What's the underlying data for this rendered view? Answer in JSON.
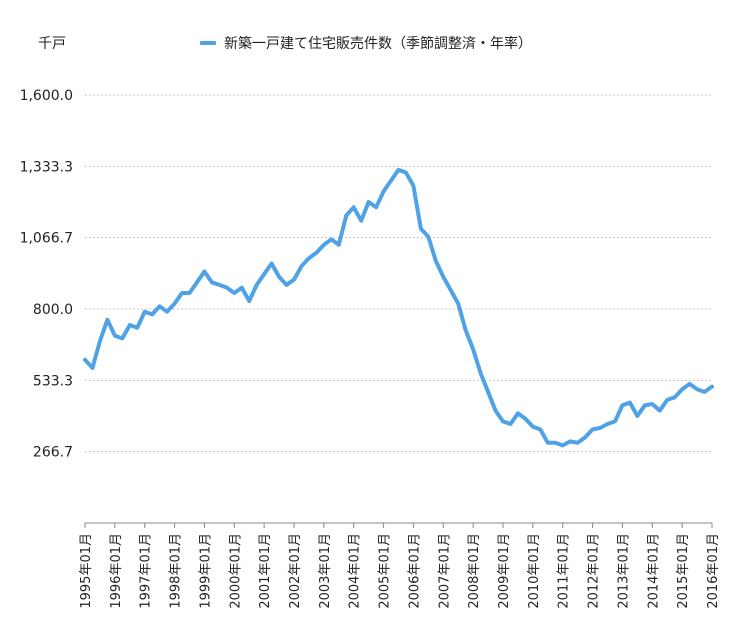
{
  "chart_data": {
    "type": "line",
    "unit_label": "千戸",
    "series": [
      {
        "name": "新築一戸建て住宅販売件数（季節調整済・年率）",
        "color": "#4fa2e6",
        "points": [
          [
            "1995-01",
            610
          ],
          [
            "1995-04",
            580
          ],
          [
            "1995-07",
            680
          ],
          [
            "1995-10",
            760
          ],
          [
            "1996-01",
            700
          ],
          [
            "1996-04",
            690
          ],
          [
            "1996-07",
            740
          ],
          [
            "1996-10",
            730
          ],
          [
            "1997-01",
            790
          ],
          [
            "1997-04",
            780
          ],
          [
            "1997-07",
            810
          ],
          [
            "1997-10",
            790
          ],
          [
            "1998-01",
            820
          ],
          [
            "1998-04",
            860
          ],
          [
            "1998-07",
            860
          ],
          [
            "1998-10",
            900
          ],
          [
            "1999-01",
            940
          ],
          [
            "1999-04",
            900
          ],
          [
            "1999-07",
            890
          ],
          [
            "1999-10",
            880
          ],
          [
            "2000-01",
            860
          ],
          [
            "2000-04",
            880
          ],
          [
            "2000-07",
            830
          ],
          [
            "2000-10",
            890
          ],
          [
            "2001-01",
            930
          ],
          [
            "2001-04",
            970
          ],
          [
            "2001-07",
            920
          ],
          [
            "2001-10",
            890
          ],
          [
            "2002-01",
            910
          ],
          [
            "2002-04",
            960
          ],
          [
            "2002-07",
            990
          ],
          [
            "2002-10",
            1010
          ],
          [
            "2003-01",
            1040
          ],
          [
            "2003-04",
            1060
          ],
          [
            "2003-07",
            1040
          ],
          [
            "2003-10",
            1150
          ],
          [
            "2004-01",
            1180
          ],
          [
            "2004-04",
            1130
          ],
          [
            "2004-07",
            1200
          ],
          [
            "2004-10",
            1180
          ],
          [
            "2005-01",
            1240
          ],
          [
            "2005-04",
            1280
          ],
          [
            "2005-07",
            1320
          ],
          [
            "2005-10",
            1310
          ],
          [
            "2006-01",
            1260
          ],
          [
            "2006-04",
            1100
          ],
          [
            "2006-07",
            1070
          ],
          [
            "2006-10",
            980
          ],
          [
            "2007-01",
            920
          ],
          [
            "2007-04",
            870
          ],
          [
            "2007-07",
            820
          ],
          [
            "2007-10",
            720
          ],
          [
            "2008-01",
            650
          ],
          [
            "2008-04",
            560
          ],
          [
            "2008-07",
            490
          ],
          [
            "2008-10",
            420
          ],
          [
            "2009-01",
            380
          ],
          [
            "2009-04",
            370
          ],
          [
            "2009-07",
            410
          ],
          [
            "2009-10",
            390
          ],
          [
            "2010-01",
            360
          ],
          [
            "2010-04",
            350
          ],
          [
            "2010-07",
            300
          ],
          [
            "2010-10",
            300
          ],
          [
            "2011-01",
            290
          ],
          [
            "2011-04",
            305
          ],
          [
            "2011-07",
            300
          ],
          [
            "2011-10",
            320
          ],
          [
            "2012-01",
            350
          ],
          [
            "2012-04",
            355
          ],
          [
            "2012-07",
            370
          ],
          [
            "2012-10",
            380
          ],
          [
            "2013-01",
            440
          ],
          [
            "2013-04",
            450
          ],
          [
            "2013-07",
            400
          ],
          [
            "2013-10",
            440
          ],
          [
            "2014-01",
            445
          ],
          [
            "2014-04",
            420
          ],
          [
            "2014-07",
            460
          ],
          [
            "2014-10",
            470
          ],
          [
            "2015-01",
            500
          ],
          [
            "2015-04",
            520
          ],
          [
            "2015-07",
            500
          ],
          [
            "2015-10",
            490
          ],
          [
            "2016-01",
            510
          ]
        ]
      }
    ],
    "x_start": "1995-01",
    "x_end": "2016-01",
    "x_tick_labels": [
      "1995年01月",
      "1996年01月",
      "1997年01月",
      "1998年01月",
      "1999年01月",
      "2000年01月",
      "2001年01月",
      "2002年01月",
      "2003年01月",
      "2004年01月",
      "2005年01月",
      "2006年01月",
      "2007年01月",
      "2008年01月",
      "2009年01月",
      "2010年01月",
      "2011年01月",
      "2012年01月",
      "2013年01月",
      "2014年01月",
      "2015年01月",
      "2016年01月"
    ],
    "y_ticks": [
      266.7,
      533.3,
      800.0,
      1066.7,
      1333.3,
      1600.0
    ],
    "y_tick_labels": [
      "266.7",
      "533.3",
      "800.0",
      "1,066.7",
      "1,333.3",
      "1,600.0"
    ],
    "ylim": [
      0,
      1600
    ],
    "grid": "horizontal-dotted",
    "legend_position": "top"
  }
}
